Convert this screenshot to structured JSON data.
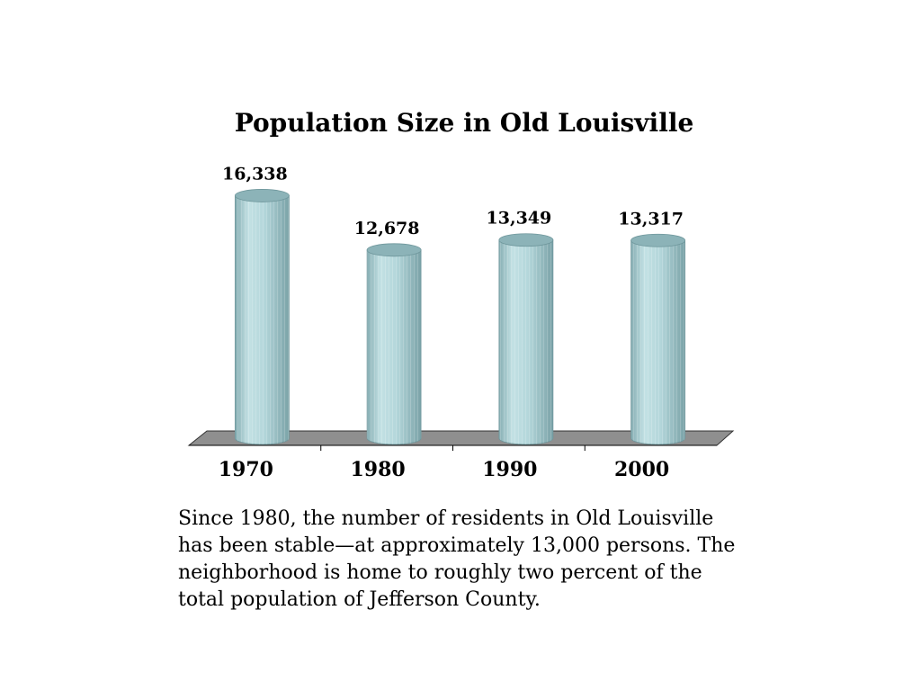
{
  "chart_data": {
    "type": "bar",
    "title": "Population Size in Old Louisville",
    "categories": [
      "1970",
      "1980",
      "1990",
      "2000"
    ],
    "values": [
      16338,
      12678,
      13349,
      13317
    ],
    "value_labels": [
      "16,338",
      "12,678",
      "13,349",
      "13,317"
    ],
    "xlabel": "",
    "ylabel": "",
    "ylim": [
      0,
      17000
    ],
    "grid": false,
    "style": "3d-cylinder",
    "colors": {
      "bar": "#a9cfd4",
      "bar_dark": "#7fa9ae",
      "bar_light": "#c8e4e7",
      "top": "#8cb3b8",
      "floor": "#8c8c8c"
    }
  },
  "caption": "Since 1980, the number of residents in Old Louisville has been stable—at approximately 13,000 persons.  The neighborhood is home to roughly two percent of the total population of Jefferson County."
}
